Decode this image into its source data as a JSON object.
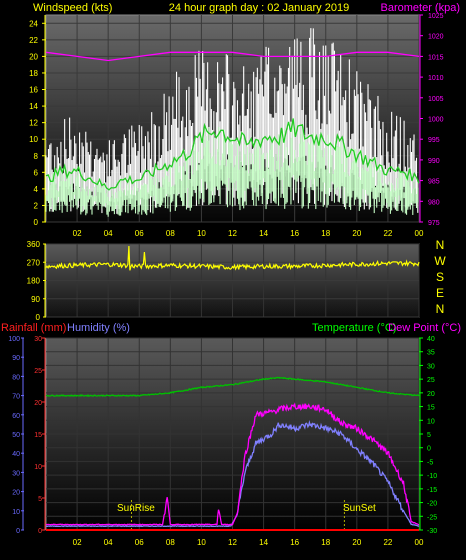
{
  "header": {
    "left_label": "Windspeed (kts)",
    "center_label": "24 hour graph day : 02 January 2019",
    "right_label": "Barometer (kpa)"
  },
  "colors": {
    "wind_gust": "#ffffff",
    "wind_avg": "#c8ffc8",
    "wind_avg_line": "#22cc22",
    "barometer": "#ff00ff",
    "direction": "#ffff00",
    "rainfall": "#ff0000",
    "humidity": "#8080ff",
    "temperature": "#00c000",
    "dewpoint": "#ff00ff",
    "axis_text": "#ffff00",
    "left_axis_blue": "#6a6aff",
    "right_axis_magenta": "#ff00ff",
    "right_axis_green": "#00ff00"
  },
  "x_ticks": [
    "02",
    "04",
    "06",
    "08",
    "10",
    "12",
    "14",
    "16",
    "18",
    "20",
    "22",
    "00"
  ],
  "direction_labels": [
    "N",
    "W",
    "S",
    "E",
    "N"
  ],
  "bottom_header": {
    "rain_label": "Rainfall (mm)",
    "humidity_label": "Humidity (%)",
    "temp_label": "Temperature (°C)",
    "dew_label": "Dew Point (°C)"
  },
  "annotations": {
    "sunrise": "SunRise",
    "sunset": "SunSet"
  },
  "chart_data": [
    {
      "type": "area",
      "title": "24 hour graph day : 02 January 2019",
      "xlabel": "",
      "ylabel": "Windspeed (kts)",
      "x_unit": "hour",
      "xlim": [
        0,
        24
      ],
      "ylim": [
        0,
        25
      ],
      "yticks": [
        0,
        2,
        4,
        6,
        8,
        10,
        12,
        14,
        16,
        18,
        20,
        22,
        24
      ],
      "y2label": "Barometer (kpa)",
      "y2lim": [
        975,
        1025
      ],
      "y2ticks": [
        975,
        980,
        985,
        990,
        995,
        1000,
        1005,
        1010,
        1015,
        1020,
        1025
      ],
      "series": [
        {
          "name": "Gust",
          "x": [
            0,
            1,
            2,
            3,
            4,
            5,
            6,
            7,
            8,
            9,
            10,
            11,
            12,
            13,
            14,
            15,
            16,
            17,
            18,
            19,
            20,
            21,
            22,
            23,
            24
          ],
          "values": [
            9,
            10,
            11,
            9,
            8,
            9,
            10,
            12,
            14,
            16,
            17,
            17,
            16,
            15,
            17,
            18,
            19,
            19,
            18,
            17,
            15,
            13,
            11,
            10,
            9
          ]
        },
        {
          "name": "Average",
          "x": [
            0,
            1,
            2,
            3,
            4,
            5,
            6,
            7,
            8,
            9,
            10,
            11,
            12,
            13,
            14,
            15,
            16,
            17,
            18,
            19,
            20,
            21,
            22,
            23,
            24
          ],
          "values": [
            5,
            6,
            6,
            5,
            4,
            5,
            5,
            6,
            7,
            8,
            10,
            11,
            10,
            9,
            10,
            10,
            11,
            10,
            10,
            9,
            8,
            7,
            6,
            6,
            5
          ]
        },
        {
          "name": "Barometer",
          "axis": "y2",
          "x": [
            0,
            2,
            4,
            6,
            8,
            10,
            12,
            14,
            16,
            18,
            20,
            22,
            24
          ],
          "values": [
            1016,
            1015,
            1014,
            1015,
            1016,
            1016,
            1016,
            1015,
            1015,
            1015,
            1016,
            1016,
            1015
          ]
        }
      ]
    },
    {
      "type": "line",
      "title": "",
      "ylabel": "",
      "xlim": [
        0,
        24
      ],
      "ylim": [
        0,
        360
      ],
      "yticks": [
        0,
        90,
        180,
        270,
        360
      ],
      "series": [
        {
          "name": "Wind direction",
          "x": [
            0,
            2,
            4,
            6,
            8,
            10,
            12,
            14,
            16,
            18,
            20,
            22,
            24
          ],
          "values": [
            250,
            255,
            260,
            250,
            255,
            250,
            245,
            250,
            250,
            255,
            260,
            265,
            265
          ]
        }
      ]
    },
    {
      "type": "line",
      "title": "",
      "xlim": [
        0,
        24
      ],
      "ylabel_left": "Rainfall (mm) / Humidity (%)",
      "ylim_humidity": [
        0,
        100
      ],
      "yticks_humidity": [
        0,
        10,
        20,
        30,
        40,
        50,
        60,
        70,
        80,
        90,
        100
      ],
      "ylim_rainfall": [
        0,
        30
      ],
      "yticks_rainfall": [
        0,
        5,
        10,
        15,
        20,
        25,
        30
      ],
      "ylabel_right": "Temperature (°C) / Dew Point (°C)",
      "ylim_temperature": [
        -30,
        40
      ],
      "yticks_temperature": [
        -30,
        -25,
        -20,
        -15,
        -10,
        -5,
        0,
        5,
        10,
        15,
        20,
        25,
        30,
        35,
        40
      ],
      "series": [
        {
          "name": "Rainfall",
          "axis": "rainfall",
          "x": [
            0,
            24
          ],
          "values": [
            0,
            0
          ]
        },
        {
          "name": "Temperature",
          "axis": "temperature",
          "x": [
            0,
            2,
            4,
            6,
            8,
            10,
            12,
            14,
            15,
            16,
            18,
            20,
            22,
            24
          ],
          "values": [
            19,
            19,
            19,
            19,
            20,
            22,
            23,
            25,
            25.5,
            25,
            24,
            22,
            20,
            19
          ]
        },
        {
          "name": "Dew Point",
          "axis": "temperature",
          "x": [
            0,
            7.5,
            7.8,
            8.0,
            8.3,
            11,
            11.1,
            11.3,
            11.5,
            12.0,
            12.3,
            12.8,
            13.5,
            14.5,
            15,
            16,
            17,
            18,
            19,
            20,
            21,
            22,
            23,
            23.5,
            24
          ],
          "values": [
            -28,
            -28,
            -18,
            -28,
            -28,
            -28,
            -22,
            -28,
            -28,
            -28,
            -24,
            -3,
            12,
            13,
            14,
            15,
            15,
            14,
            9,
            7,
            3,
            -2,
            -13,
            -27,
            -28
          ]
        },
        {
          "name": "Humidity",
          "axis": "humidity",
          "x": [
            0,
            11.9,
            12.3,
            12.8,
            13.5,
            14.5,
            15,
            16,
            17,
            18,
            19,
            20,
            21,
            22,
            23,
            23.5,
            24
          ],
          "values": [
            2,
            2,
            8,
            30,
            45,
            50,
            55,
            53,
            55,
            53,
            50,
            42,
            35,
            25,
            10,
            3,
            2
          ]
        }
      ]
    }
  ]
}
